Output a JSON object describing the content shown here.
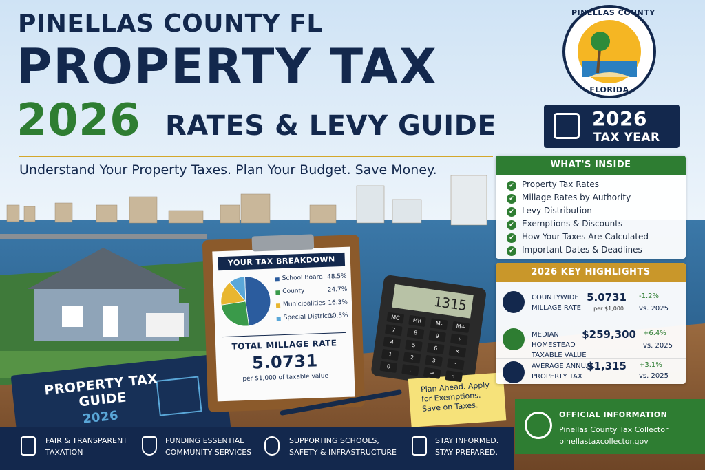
{
  "header": {
    "line1": "PINELLAS COUNTY FL",
    "line2": "PROPERTY TAX",
    "year": "2026",
    "line3": "RATES & LEVY GUIDE",
    "tagline": "Understand Your Property Taxes. Plan Your Budget. Save Money."
  },
  "logo": {
    "top": "PINELLAS COUNTY",
    "bottom": "FLORIDA"
  },
  "badge": {
    "year": "2026",
    "label": "TAX YEAR"
  },
  "inside": {
    "title": "WHAT'S INSIDE",
    "items": [
      "Property Tax Rates",
      "Millage Rates by Authority",
      "Levy Distribution",
      "Exemptions & Discounts",
      "How Your Taxes Are Calculated",
      "Important Dates & Deadlines"
    ]
  },
  "highlights": {
    "title": "2026 KEY HIGHLIGHTS",
    "items": [
      {
        "label": "COUNTYWIDE MILLAGE RATE",
        "value": "5.0731",
        "note": "per $1,000",
        "change": "-1.2%",
        "compare": "vs. 2025"
      },
      {
        "label": "MEDIAN HOMESTEAD TAXABLE VALUE",
        "value": "$259,300",
        "change": "+6.4%",
        "compare": "vs. 2025"
      },
      {
        "label": "AVERAGE ANNUAL PROPERTY TAX",
        "value": "$1,315",
        "change": "+3.1%",
        "compare": "vs. 2025"
      }
    ]
  },
  "breakdown": {
    "title": "YOUR TAX BREAKDOWN",
    "labels": [
      "School Board",
      "County",
      "Municipalities",
      "Special Districts"
    ],
    "values": [
      48.5,
      24.7,
      16.3,
      10.5
    ],
    "value_labels": [
      "48.5%",
      "24.7%",
      "16.3%",
      "10.5%"
    ],
    "colors": [
      "#2b5c9e",
      "#3a9a4a",
      "#e8b630",
      "#5aa7d8"
    ],
    "total_title": "TOTAL MILLAGE RATE",
    "total_value": "5.0731",
    "total_note": "per $1,000 of taxable value"
  },
  "calculator": {
    "display": "1315",
    "keys": [
      "MC",
      "MR",
      "M-",
      "M+",
      "7",
      "8",
      "9",
      "÷",
      "4",
      "5",
      "6",
      "×",
      "1",
      "2",
      "3",
      "-",
      "0",
      ".",
      "=",
      "+"
    ]
  },
  "note": {
    "text": "Plan Ahead. Apply for Exemptions. Save on Taxes."
  },
  "book": {
    "title": "PROPERTY TAX GUIDE",
    "year": "2026"
  },
  "footer": {
    "items": [
      "FAIR & TRANSPARENT TAXATION",
      "FUNDING ESSENTIAL COMMUNITY SERVICES",
      "SUPPORTING SCHOOLS, SAFETY & INFRASTRUCTURE",
      "STAY INFORMED. STAY PREPARED."
    ]
  },
  "official": {
    "title": "OFFICIAL INFORMATION",
    "name": "Pinellas County Tax Collector",
    "site": "pinellastaxcollector.gov"
  }
}
